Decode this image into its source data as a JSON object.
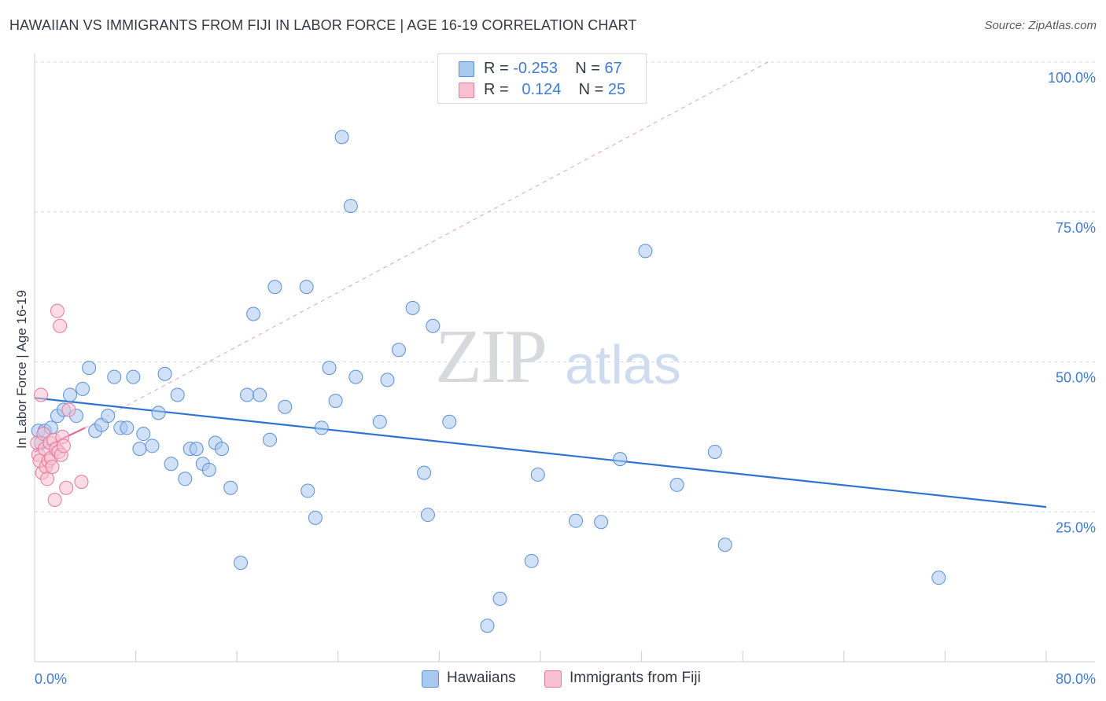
{
  "title": "HAWAIIAN VS IMMIGRANTS FROM FIJI IN LABOR FORCE | AGE 16-19 CORRELATION CHART",
  "source": "Source: ZipAtlas.com",
  "watermark": {
    "zip": "ZIP",
    "atlas": "atlas"
  },
  "legend": {
    "rows": [
      {
        "r_label": "R =",
        "r_value": "-0.253",
        "n_label": "N =",
        "n_value": "67",
        "color": "#a9c8f0",
        "border": "#5b8fd6"
      },
      {
        "r_label": "R =",
        "r_value": "0.124",
        "n_label": "N =",
        "n_value": "25",
        "color": "#f8bfd0",
        "border": "#e47a9c"
      }
    ]
  },
  "bottom_legend": [
    {
      "label": "Hawaiians",
      "color": "#a9c8f0",
      "border": "#5b8fd6"
    },
    {
      "label": "Immigrants from Fiji",
      "color": "#f8bfd0",
      "border": "#e47a9c"
    }
  ],
  "chart_data": {
    "type": "scatter",
    "title": "HAWAIIAN VS IMMIGRANTS FROM FIJI IN LABOR FORCE | AGE 16-19 CORRELATION CHART",
    "xlabel": "",
    "ylabel": "In Labor Force | Age 16-19",
    "xlim": [
      0,
      80
    ],
    "ylim": [
      0,
      100
    ],
    "x_ticks": [
      "0.0%",
      "80.0%"
    ],
    "y_ticks": [
      {
        "value": 25,
        "label": "25.0%"
      },
      {
        "value": 50,
        "label": "50.0%"
      },
      {
        "value": 75,
        "label": "75.0%"
      },
      {
        "value": 100,
        "label": "100.0%"
      }
    ],
    "grid": true,
    "legend_position": "top-center",
    "series": [
      {
        "name": "Hawaiians",
        "color": "#a9c8f0",
        "edge_color": "#5b8fd6",
        "trend_color": "#2f73d0",
        "trend": {
          "x": [
            0,
            80
          ],
          "y": [
            44,
            25.8
          ]
        },
        "points": [
          {
            "x": 0.3,
            "y": 38.5
          },
          {
            "x": 0.5,
            "y": 36.5
          },
          {
            "x": 0.8,
            "y": 38.5
          },
          {
            "x": 1.3,
            "y": 39.0
          },
          {
            "x": 1.8,
            "y": 41.0
          },
          {
            "x": 2.3,
            "y": 42.0
          },
          {
            "x": 2.8,
            "y": 44.5
          },
          {
            "x": 3.3,
            "y": 41.0
          },
          {
            "x": 3.8,
            "y": 45.5
          },
          {
            "x": 4.3,
            "y": 49.0
          },
          {
            "x": 4.8,
            "y": 38.5
          },
          {
            "x": 5.3,
            "y": 39.5
          },
          {
            "x": 5.8,
            "y": 41.0
          },
          {
            "x": 6.3,
            "y": 47.5
          },
          {
            "x": 6.8,
            "y": 39.0
          },
          {
            "x": 7.3,
            "y": 39.0
          },
          {
            "x": 7.8,
            "y": 47.5
          },
          {
            "x": 8.3,
            "y": 35.5
          },
          {
            "x": 8.6,
            "y": 38.0
          },
          {
            "x": 9.3,
            "y": 36.0
          },
          {
            "x": 9.8,
            "y": 41.5
          },
          {
            "x": 10.3,
            "y": 48.0
          },
          {
            "x": 10.8,
            "y": 33.0
          },
          {
            "x": 11.3,
            "y": 44.5
          },
          {
            "x": 11.9,
            "y": 30.5
          },
          {
            "x": 12.3,
            "y": 35.5
          },
          {
            "x": 12.8,
            "y": 35.5
          },
          {
            "x": 13.3,
            "y": 33.0
          },
          {
            "x": 13.8,
            "y": 32.0
          },
          {
            "x": 14.3,
            "y": 36.5
          },
          {
            "x": 14.8,
            "y": 35.5
          },
          {
            "x": 15.5,
            "y": 29.0
          },
          {
            "x": 16.3,
            "y": 16.5
          },
          {
            "x": 16.8,
            "y": 44.5
          },
          {
            "x": 17.3,
            "y": 58.0
          },
          {
            "x": 17.8,
            "y": 44.5
          },
          {
            "x": 18.6,
            "y": 37.0
          },
          {
            "x": 19.0,
            "y": 62.5
          },
          {
            "x": 19.8,
            "y": 42.5
          },
          {
            "x": 21.5,
            "y": 62.5
          },
          {
            "x": 21.6,
            "y": 28.5
          },
          {
            "x": 22.2,
            "y": 24.0
          },
          {
            "x": 22.7,
            "y": 39.0
          },
          {
            "x": 23.3,
            "y": 49.0
          },
          {
            "x": 23.8,
            "y": 43.5
          },
          {
            "x": 24.3,
            "y": 87.5
          },
          {
            "x": 25.0,
            "y": 76.0
          },
          {
            "x": 25.4,
            "y": 47.5
          },
          {
            "x": 27.3,
            "y": 40.0
          },
          {
            "x": 27.9,
            "y": 47.0
          },
          {
            "x": 28.8,
            "y": 52.0
          },
          {
            "x": 29.9,
            "y": 59.0
          },
          {
            "x": 30.8,
            "y": 31.5
          },
          {
            "x": 31.1,
            "y": 24.5
          },
          {
            "x": 31.5,
            "y": 56.0
          },
          {
            "x": 32.8,
            "y": 40.0
          },
          {
            "x": 35.8,
            "y": 6.0
          },
          {
            "x": 36.8,
            "y": 10.5
          },
          {
            "x": 39.3,
            "y": 16.8
          },
          {
            "x": 39.8,
            "y": 31.2
          },
          {
            "x": 42.8,
            "y": 23.5
          },
          {
            "x": 44.8,
            "y": 23.3
          },
          {
            "x": 46.3,
            "y": 33.8
          },
          {
            "x": 48.3,
            "y": 68.5
          },
          {
            "x": 50.8,
            "y": 29.5
          },
          {
            "x": 53.8,
            "y": 35.0
          },
          {
            "x": 54.6,
            "y": 19.5
          },
          {
            "x": 71.5,
            "y": 14.0
          }
        ]
      },
      {
        "name": "Immigrants from Fiji",
        "color": "#f8bfd0",
        "edge_color": "#e47a9c",
        "trend_color": "#e46b92",
        "trend": {
          "x": [
            0,
            4.0
          ],
          "y": [
            35.0,
            39.0
          ]
        },
        "trend_extension": {
          "x": [
            4.0,
            58.0
          ],
          "y": [
            39.0,
            100.0
          ]
        },
        "points": [
          {
            "x": 0.2,
            "y": 36.5
          },
          {
            "x": 0.3,
            "y": 34.5
          },
          {
            "x": 0.4,
            "y": 33.5
          },
          {
            "x": 0.5,
            "y": 44.5
          },
          {
            "x": 0.6,
            "y": 31.5
          },
          {
            "x": 0.7,
            "y": 38.0
          },
          {
            "x": 0.8,
            "y": 35.5
          },
          {
            "x": 0.9,
            "y": 32.5
          },
          {
            "x": 1.0,
            "y": 30.5
          },
          {
            "x": 1.1,
            "y": 33.5
          },
          {
            "x": 1.2,
            "y": 36.5
          },
          {
            "x": 1.3,
            "y": 34.0
          },
          {
            "x": 1.4,
            "y": 32.5
          },
          {
            "x": 1.5,
            "y": 37.0
          },
          {
            "x": 1.6,
            "y": 27.0
          },
          {
            "x": 1.7,
            "y": 35.5
          },
          {
            "x": 1.8,
            "y": 58.5
          },
          {
            "x": 1.9,
            "y": 35.0
          },
          {
            "x": 2.0,
            "y": 56.0
          },
          {
            "x": 2.1,
            "y": 34.5
          },
          {
            "x": 2.2,
            "y": 37.5
          },
          {
            "x": 2.3,
            "y": 36.0
          },
          {
            "x": 2.5,
            "y": 29.0
          },
          {
            "x": 2.7,
            "y": 42.0
          },
          {
            "x": 3.7,
            "y": 30.0
          }
        ]
      }
    ]
  }
}
